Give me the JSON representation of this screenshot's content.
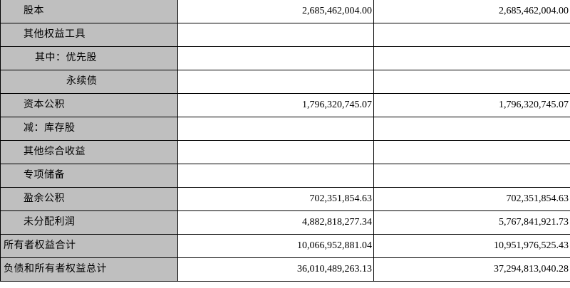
{
  "rows": [
    {
      "label": "股本",
      "current": "2,685,462,004.00",
      "previous": "2,685,462,004.00"
    },
    {
      "label": "其他权益工具",
      "current": "",
      "previous": ""
    },
    {
      "label": "其中：优先股",
      "current": "",
      "previous": ""
    },
    {
      "label": "永续债",
      "current": "",
      "previous": ""
    },
    {
      "label": "资本公积",
      "current": "1,796,320,745.07",
      "previous": "1,796,320,745.07"
    },
    {
      "label": "减：库存股",
      "current": "",
      "previous": ""
    },
    {
      "label": "其他综合收益",
      "current": "",
      "previous": ""
    },
    {
      "label": "专项储备",
      "current": "",
      "previous": ""
    },
    {
      "label": "盈余公积",
      "current": "702,351,854.63",
      "previous": "702,351,854.63"
    },
    {
      "label": "未分配利润",
      "current": "4,882,818,277.34",
      "previous": "5,767,841,921.73"
    },
    {
      "label": "所有者权益合计",
      "current": "10,066,952,881.04",
      "previous": "10,951,976,525.43"
    },
    {
      "label": "负债和所有者权益总计",
      "current": "36,010,489,263.13",
      "previous": "37,294,813,040.28"
    }
  ]
}
